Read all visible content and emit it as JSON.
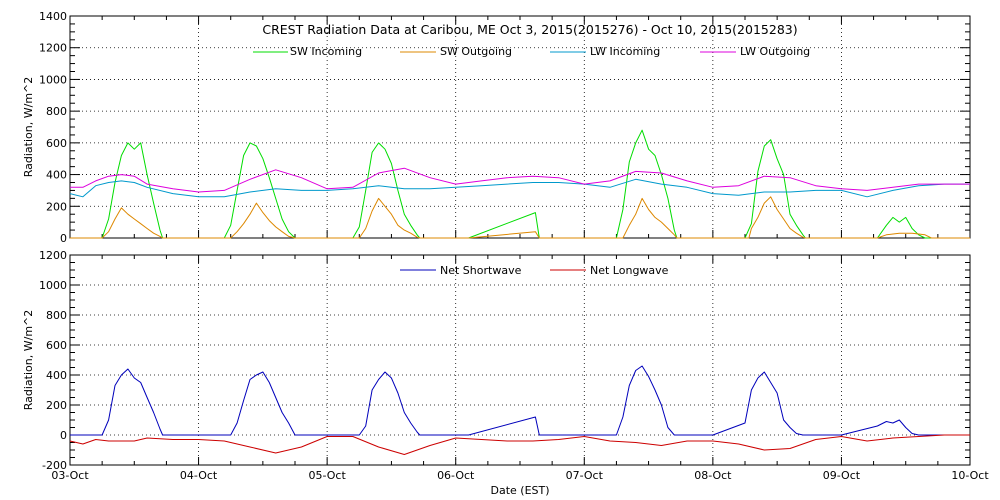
{
  "chart_data": [
    {
      "type": "line",
      "title": "CREST Radiation Data at Caribou, ME   Oct  3, 2015(2015276) - Oct 10, 2015(2015283)",
      "ylabel": "Radiation, W/m^2",
      "xlabel": "",
      "ylim": [
        0,
        1400
      ],
      "yticks": [
        0,
        200,
        400,
        600,
        800,
        1000,
        1200,
        1400
      ],
      "xlim": [
        0,
        7
      ],
      "grid": true,
      "legend_placement": "top",
      "series": [
        {
          "name": "SW Incoming",
          "color": "#00dd00",
          "x": [
            0,
            0.25,
            0.3,
            0.35,
            0.4,
            0.45,
            0.5,
            0.55,
            0.6,
            0.65,
            0.7,
            0.72,
            0.8,
            1.0,
            1.2,
            1.25,
            1.3,
            1.35,
            1.4,
            1.45,
            1.5,
            1.55,
            1.6,
            1.65,
            1.7,
            1.75,
            2.0,
            2.2,
            2.25,
            2.3,
            2.35,
            2.4,
            2.45,
            2.5,
            2.55,
            2.6,
            2.65,
            2.7,
            2.72,
            3.0,
            3.1,
            3.62,
            3.65,
            4.0,
            4.25,
            4.3,
            4.35,
            4.4,
            4.45,
            4.5,
            4.55,
            4.6,
            4.65,
            4.7,
            4.72,
            5.0,
            5.25,
            5.3,
            5.35,
            5.4,
            5.45,
            5.5,
            5.55,
            5.6,
            5.65,
            5.7,
            5.72,
            6.0,
            6.28,
            6.35,
            6.4,
            6.45,
            6.5,
            6.55,
            6.6,
            6.65,
            6.7,
            7.0
          ],
          "y": [
            0,
            0,
            120,
            350,
            520,
            600,
            560,
            600,
            400,
            220,
            50,
            0,
            0,
            0,
            0,
            80,
            300,
            520,
            600,
            580,
            500,
            380,
            250,
            120,
            40,
            0,
            0,
            0,
            70,
            300,
            540,
            600,
            560,
            470,
            300,
            150,
            80,
            20,
            0,
            0,
            0,
            160,
            0,
            0,
            0,
            180,
            480,
            600,
            680,
            560,
            520,
            400,
            250,
            50,
            0,
            0,
            0,
            90,
            420,
            580,
            620,
            500,
            400,
            150,
            80,
            20,
            0,
            0,
            0,
            80,
            130,
            100,
            130,
            60,
            20,
            0,
            0,
            0
          ]
        },
        {
          "name": "SW Outgoing",
          "color": "#dd8800",
          "x": [
            0,
            0.25,
            0.3,
            0.35,
            0.4,
            0.45,
            0.5,
            0.55,
            0.6,
            0.65,
            0.7,
            0.72,
            1.0,
            1.25,
            1.3,
            1.35,
            1.4,
            1.45,
            1.5,
            1.55,
            1.6,
            1.65,
            1.7,
            1.75,
            2.0,
            2.25,
            2.3,
            2.35,
            2.4,
            2.45,
            2.5,
            2.55,
            2.6,
            2.65,
            2.7,
            2.72,
            3.0,
            3.1,
            3.62,
            3.65,
            4.0,
            4.3,
            4.35,
            4.4,
            4.45,
            4.5,
            4.55,
            4.6,
            4.65,
            4.7,
            4.72,
            5.0,
            5.28,
            5.3,
            5.35,
            5.4,
            5.45,
            5.5,
            5.55,
            5.6,
            5.65,
            5.7,
            5.72,
            6.0,
            6.28,
            6.35,
            6.45,
            6.55,
            6.65,
            6.7,
            7.0
          ],
          "y": [
            0,
            0,
            40,
            120,
            190,
            150,
            120,
            90,
            60,
            30,
            10,
            0,
            0,
            0,
            40,
            90,
            150,
            220,
            160,
            110,
            70,
            40,
            10,
            0,
            0,
            0,
            60,
            170,
            250,
            200,
            150,
            80,
            50,
            30,
            5,
            0,
            0,
            0,
            40,
            0,
            0,
            0,
            80,
            150,
            250,
            180,
            130,
            100,
            60,
            20,
            0,
            0,
            0,
            60,
            130,
            220,
            260,
            180,
            120,
            60,
            30,
            5,
            0,
            0,
            0,
            20,
            30,
            30,
            20,
            0,
            0
          ]
        },
        {
          "name": "LW Incoming",
          "color": "#0099cc",
          "x": [
            0,
            0.1,
            0.2,
            0.3,
            0.4,
            0.5,
            0.6,
            0.8,
            1.0,
            1.2,
            1.4,
            1.6,
            1.8,
            2.0,
            2.2,
            2.4,
            2.6,
            2.8,
            3.0,
            3.2,
            3.4,
            3.6,
            3.8,
            4.0,
            4.2,
            4.4,
            4.6,
            4.8,
            5.0,
            5.2,
            5.4,
            5.6,
            5.8,
            6.0,
            6.2,
            6.4,
            6.6,
            6.8,
            7.0
          ],
          "y": [
            280,
            260,
            330,
            350,
            360,
            350,
            320,
            280,
            260,
            260,
            290,
            310,
            300,
            300,
            310,
            330,
            310,
            310,
            320,
            330,
            340,
            350,
            350,
            340,
            320,
            370,
            340,
            320,
            280,
            270,
            290,
            290,
            300,
            300,
            260,
            300,
            330,
            340,
            340
          ]
        },
        {
          "name": "LW Outgoing",
          "color": "#dd00dd",
          "x": [
            0,
            0.1,
            0.2,
            0.3,
            0.4,
            0.5,
            0.6,
            0.8,
            1.0,
            1.2,
            1.4,
            1.6,
            1.8,
            2.0,
            2.2,
            2.4,
            2.6,
            2.8,
            3.0,
            3.2,
            3.4,
            3.6,
            3.8,
            4.0,
            4.2,
            4.4,
            4.6,
            4.8,
            5.0,
            5.2,
            5.4,
            5.6,
            5.8,
            6.0,
            6.2,
            6.4,
            6.6,
            6.8,
            7.0
          ],
          "y": [
            320,
            320,
            360,
            390,
            400,
            390,
            340,
            310,
            290,
            300,
            370,
            430,
            380,
            310,
            320,
            410,
            440,
            380,
            340,
            360,
            380,
            390,
            380,
            340,
            360,
            420,
            410,
            360,
            320,
            330,
            390,
            380,
            330,
            310,
            300,
            320,
            340,
            340,
            340
          ]
        }
      ]
    },
    {
      "type": "line",
      "title": "",
      "ylabel": "Radiation, W/m^2",
      "xlabel": "Date (EST)",
      "ylim": [
        -200,
        1200
      ],
      "yticks": [
        -200,
        0,
        200,
        400,
        600,
        800,
        1000,
        1200
      ],
      "xlim": [
        0,
        7
      ],
      "x_tick_labels": [
        "03-Oct",
        "04-Oct",
        "05-Oct",
        "06-Oct",
        "07-Oct",
        "08-Oct",
        "09-Oct",
        "10-Oct"
      ],
      "grid": true,
      "legend_placement": "top",
      "series": [
        {
          "name": "Net Shortwave",
          "color": "#0000bb",
          "x": [
            0,
            0.25,
            0.3,
            0.35,
            0.4,
            0.45,
            0.5,
            0.55,
            0.6,
            0.65,
            0.7,
            0.72,
            1.0,
            1.25,
            1.3,
            1.35,
            1.4,
            1.45,
            1.5,
            1.55,
            1.6,
            1.65,
            1.7,
            1.75,
            2.0,
            2.25,
            2.3,
            2.35,
            2.4,
            2.45,
            2.5,
            2.55,
            2.6,
            2.65,
            2.7,
            2.72,
            3.0,
            3.1,
            3.62,
            3.65,
            4.0,
            4.25,
            4.3,
            4.35,
            4.4,
            4.45,
            4.5,
            4.55,
            4.6,
            4.65,
            4.7,
            4.72,
            5.0,
            5.25,
            5.3,
            5.35,
            5.4,
            5.45,
            5.5,
            5.55,
            5.6,
            5.65,
            5.7,
            5.72,
            6.0,
            6.28,
            6.35,
            6.4,
            6.45,
            6.5,
            6.55,
            6.6,
            6.65,
            6.7,
            7.0
          ],
          "y": [
            0,
            0,
            100,
            330,
            400,
            440,
            380,
            350,
            250,
            150,
            40,
            0,
            0,
            0,
            80,
            230,
            370,
            400,
            420,
            350,
            250,
            150,
            80,
            0,
            0,
            0,
            60,
            300,
            370,
            420,
            380,
            280,
            150,
            80,
            20,
            0,
            0,
            0,
            120,
            0,
            0,
            0,
            120,
            330,
            430,
            460,
            390,
            300,
            200,
            50,
            0,
            0,
            0,
            80,
            300,
            380,
            420,
            350,
            280,
            100,
            50,
            10,
            0,
            0,
            0,
            60,
            90,
            80,
            100,
            50,
            10,
            0,
            0,
            0,
            0
          ]
        },
        {
          "name": "Net Longwave",
          "color": "#cc0000",
          "x": [
            0,
            0.1,
            0.2,
            0.3,
            0.4,
            0.5,
            0.6,
            0.8,
            1.0,
            1.2,
            1.4,
            1.6,
            1.8,
            2.0,
            2.2,
            2.4,
            2.6,
            2.8,
            3.0,
            3.2,
            3.4,
            3.6,
            3.8,
            4.0,
            4.2,
            4.4,
            4.6,
            4.8,
            5.0,
            5.2,
            5.4,
            5.6,
            5.8,
            6.0,
            6.2,
            6.4,
            6.6,
            6.8,
            7.0
          ],
          "y": [
            -40,
            -60,
            -30,
            -40,
            -40,
            -40,
            -20,
            -30,
            -30,
            -40,
            -80,
            -120,
            -80,
            -10,
            -10,
            -80,
            -130,
            -70,
            -20,
            -30,
            -40,
            -40,
            -30,
            -10,
            -40,
            -50,
            -70,
            -40,
            -40,
            -60,
            -100,
            -90,
            -30,
            -10,
            -40,
            -20,
            -10,
            0,
            0
          ]
        }
      ]
    }
  ]
}
